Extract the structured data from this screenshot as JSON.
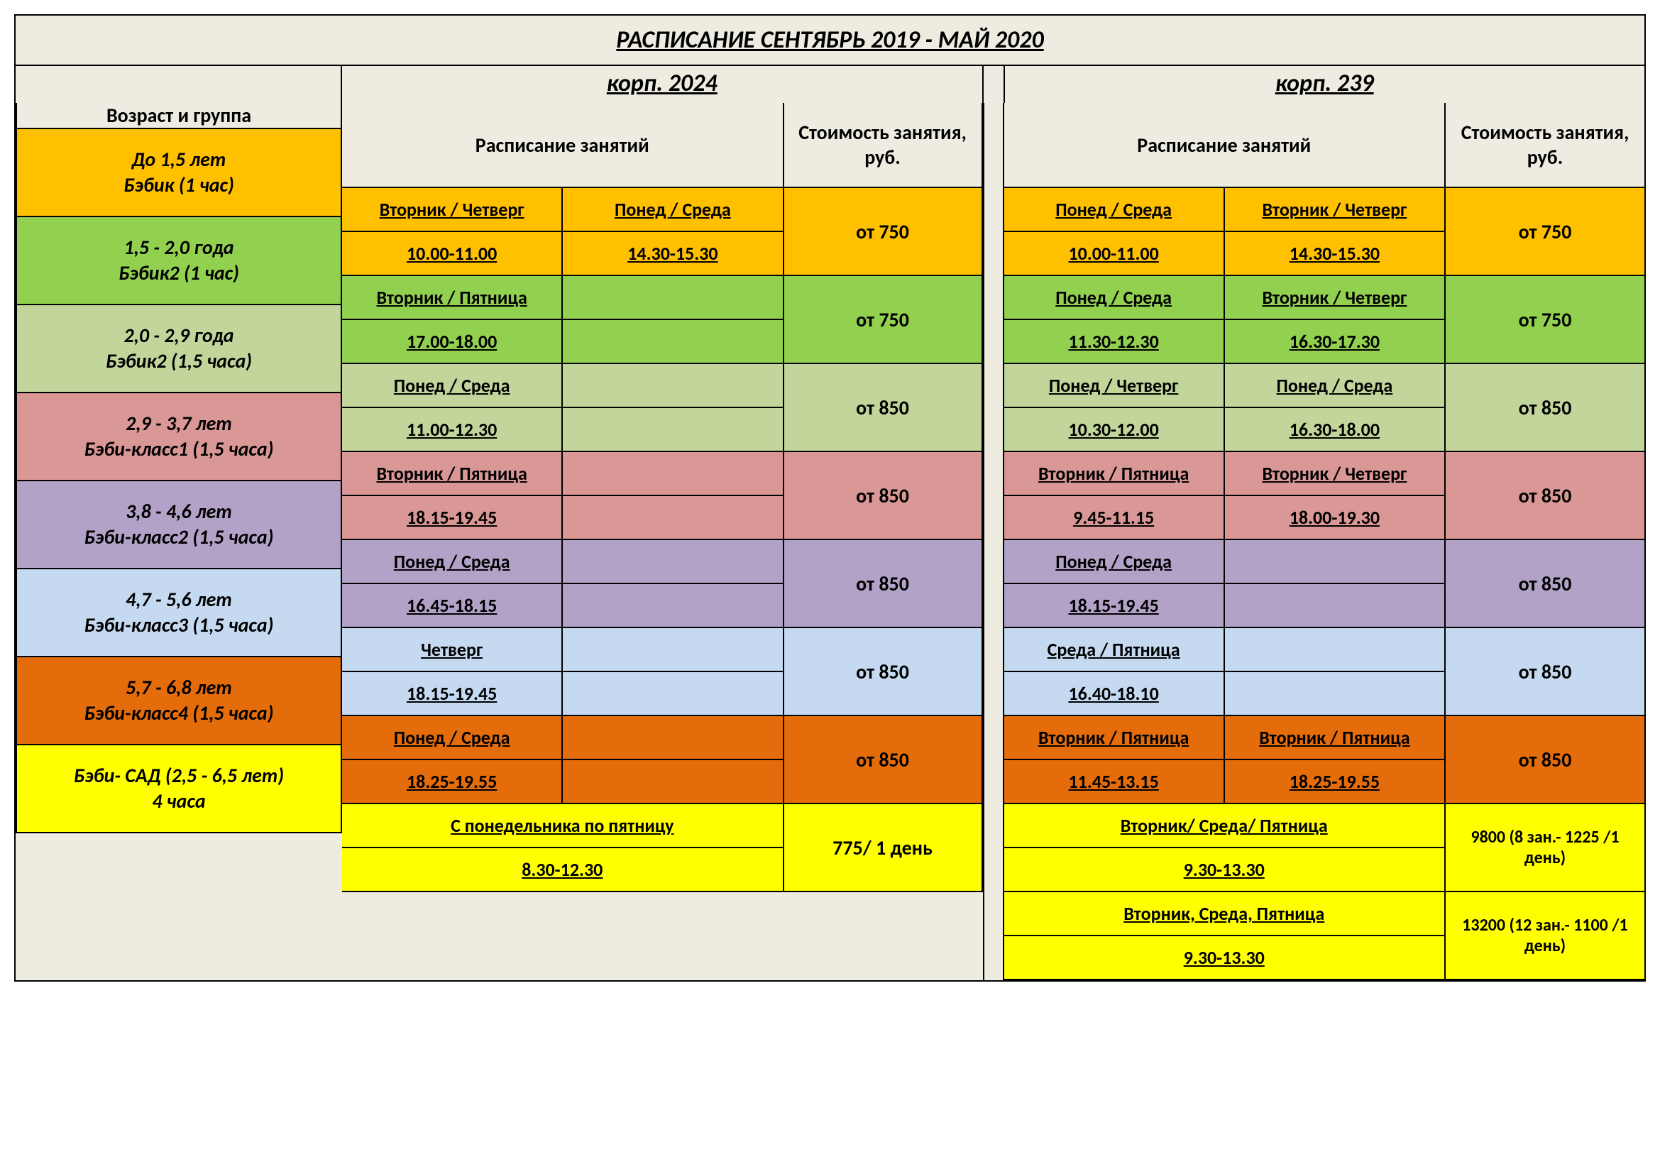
{
  "title": "РАСПИСАНИЕ   СЕНТЯБРЬ 2019  -  МАЙ 2020",
  "building1": "корп. 2024",
  "building2": "корп. 239",
  "headers": {
    "age": "Возраст и группа",
    "schedule": "Расписание занятий",
    "price": "Стоимость занятия, руб."
  },
  "colors": {
    "beige": "#eeece1",
    "orange": "#ffc000",
    "green": "#92d050",
    "lightgreen": "#c2d69b",
    "pink": "#d99795",
    "purple": "#b2a2c7",
    "lightblue": "#c5d9f1",
    "darkorange": "#e46c0a",
    "yellow": "#ffff00"
  },
  "rows": [
    {
      "color": "orange",
      "age1": "До 1,5 лет",
      "age2": "Бэбик (1 час)",
      "b1c1top": "Вторник / Четверг",
      "b1c1bot": "10.00-11.00",
      "b1c2top": "Понед / Среда",
      "b1c2bot": "14.30-15.30",
      "b1price": "от 750",
      "b2c1top": "Понед / Среда",
      "b2c1bot": "10.00-11.00",
      "b2c2top": "Вторник / Четверг",
      "b2c2bot": "14.30-15.30",
      "b2price": "от 750"
    },
    {
      "color": "green",
      "age1": "1,5 - 2,0 года",
      "age2": "Бэбик2 (1 час)",
      "b1c1top": "Вторник / Пятница",
      "b1c1bot": "17.00-18.00",
      "b1c2top": "",
      "b1c2bot": "",
      "b1price": "от 750",
      "b2c1top": "Понед / Среда",
      "b2c1bot": "11.30-12.30",
      "b2c2top": "Вторник / Четверг",
      "b2c2bot": "16.30-17.30",
      "b2price": "от 750"
    },
    {
      "color": "lightgreen",
      "age1": "2,0 - 2,9 года",
      "age2": "Бэбик2 (1,5 часа)",
      "b1c1top": "Понед / Среда",
      "b1c1bot": "11.00-12.30",
      "b1c2top": "",
      "b1c2bot": "",
      "b1price": "от 850",
      "b2c1top": "Понед / Четверг",
      "b2c1bot": "10.30-12.00",
      "b2c2top": "Понед / Среда",
      "b2c2bot": "16.30-18.00",
      "b2price": "от 850"
    },
    {
      "color": "pink",
      "age1": "2,9 - 3,7 лет",
      "age2": "Бэби-класс1 (1,5 часа)",
      "b1c1top": "Вторник / Пятница",
      "b1c1bot": "18.15-19.45",
      "b1c2top": "",
      "b1c2bot": "",
      "b1price": "от 850",
      "b2c1top": "Вторник / Пятница",
      "b2c1bot": "9.45-11.15",
      "b2c2top": "Вторник / Четверг",
      "b2c2bot": "18.00-19.30",
      "b2price": "от 850"
    },
    {
      "color": "purple",
      "age1": "3,8 - 4,6 лет",
      "age2": "Бэби-класс2 (1,5 часа)",
      "b1c1top": "Понед / Среда",
      "b1c1bot": "16.45-18.15",
      "b1c2top": "",
      "b1c2bot": "",
      "b1price": "от 850",
      "b2c1top": "Понед / Среда",
      "b2c1bot": "18.15-19.45",
      "b2c2top": "",
      "b2c2bot": "",
      "b2price": "от 850"
    },
    {
      "color": "lightblue",
      "age1": "4,7 - 5,6 лет",
      "age2": "Бэби-класс3 (1,5 часа)",
      "b1c1top": "Четверг",
      "b1c1bot": "18.15-19.45",
      "b1c2top": "",
      "b1c2bot": "",
      "b1price": "от 850",
      "b2c1top": "Среда / Пятница",
      "b2c1bot": "16.40-18.10",
      "b2c2top": "",
      "b2c2bot": "",
      "b2price": "от 850"
    },
    {
      "color": "darkorange",
      "age1": "5,7 - 6,8 лет",
      "age2": "Бэби-класс4 (1,5 часа)",
      "b1c1top": "Понед / Среда",
      "b1c1bot": "18.25-19.55",
      "b1c2top": "",
      "b1c2bot": "",
      "b1price": "от 850",
      "b2c1top": "Вторник / Пятница",
      "b2c1bot": "11.45-13.15",
      "b2c2top": "Вторник / Пятница",
      "b2c2bot": "18.25-19.55",
      "b2price": "от 850"
    }
  ],
  "yellow1": {
    "color": "yellow",
    "age1": "Бэби- САД (2,5 - 6,5 лет)",
    "age2": "4 часа",
    "b1top": "С понедельника по пятницу",
    "b1bot": "8.30-12.30",
    "b1price": "775/ 1 день",
    "b2top": "Вторник/ Среда/ Пятница",
    "b2bot": "9.30-13.30",
    "b2price": "9800 (8 зан.- 1225 /1 день)"
  },
  "yellow2": {
    "color": "yellow",
    "b2top": "Вторник, Среда, Пятница",
    "b2bot": "9.30-13.30",
    "b2price": "13200 (12 зан.- 1100 /1 день)"
  }
}
